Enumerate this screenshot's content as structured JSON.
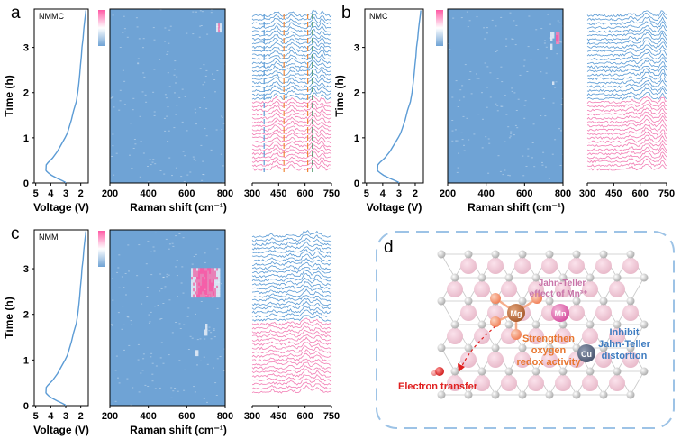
{
  "figure": {
    "colors": {
      "blue": "#6fa3d5",
      "pink": "#f27fb5",
      "hot": "#ff5aa5",
      "line": "#5b9bd5",
      "orange": "#f0883a",
      "text_orange": "#e8762f",
      "text_blue": "#3f7cc0",
      "text_pink": "#c873a8",
      "red": "#e02020",
      "dash": "#9dc3e6"
    },
    "panels": [
      {
        "letter": "a",
        "sample": "NMMC",
        "voltage_axis": {
          "label": "Voltage (V)",
          "ticks": [
            "5",
            "4",
            "3",
            "2"
          ]
        },
        "time_axis": {
          "label": "Time (h)",
          "ticks": [
            "0",
            "1",
            "2",
            "3"
          ]
        },
        "raman_axis": {
          "label": "Raman shift (cm⁻¹)",
          "ticks": [
            "200",
            "400",
            "600",
            "800"
          ]
        },
        "stack_axis": {
          "ticks": [
            "300",
            "450",
            "600",
            "750"
          ]
        }
      },
      {
        "letter": "b",
        "sample": "NMC",
        "voltage_axis": {
          "label": "Voltage (V)",
          "ticks": [
            "5",
            "4",
            "3",
            "2"
          ]
        },
        "time_axis": {
          "label": "Time (h)",
          "ticks": [
            "0",
            "1",
            "2",
            "3"
          ]
        },
        "raman_axis": {
          "label": "Raman shift (cm⁻¹)",
          "ticks": [
            "200",
            "400",
            "600",
            "800"
          ]
        },
        "stack_axis": {
          "ticks": [
            "300",
            "450",
            "600",
            "750"
          ]
        }
      },
      {
        "letter": "c",
        "sample": "NMM",
        "voltage_axis": {
          "label": "Voltage (V)",
          "ticks": [
            "5",
            "4",
            "3",
            "2"
          ]
        },
        "time_axis": {
          "label": "Time (h)",
          "ticks": [
            "0",
            "1",
            "2",
            "3"
          ]
        },
        "raman_axis": {
          "label": "Raman shift (cm⁻¹)",
          "ticks": [
            "200",
            "400",
            "600",
            "800"
          ]
        },
        "stack_axis": {
          "ticks": [
            "300",
            "450",
            "600",
            "750"
          ]
        }
      }
    ],
    "schematic": {
      "letter": "d",
      "atoms": {
        "mg": "Mg",
        "mn": "Mn",
        "cu": "Cu"
      },
      "labels": {
        "jahn_teller_1": "Jahn-Teller",
        "jahn_teller_2": "effect of Mn³⁺",
        "strengthen_1": "Strengthen",
        "strengthen_2": "oxygen",
        "strengthen_3": "redox activity",
        "inhibit_1": "Inhibit",
        "inhibit_2": "Jahn-Teller",
        "inhibit_3": "distortion",
        "electron": "Electron transfer"
      }
    }
  }
}
